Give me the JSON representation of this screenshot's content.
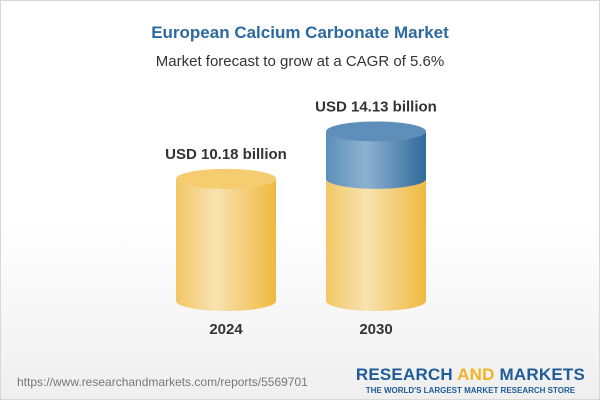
{
  "title": "European Calcium Carbonate Market",
  "subtitle": "Market forecast to grow at a CAGR of 5.6%",
  "chart_data": {
    "type": "bar",
    "style": "3d-cylinder",
    "categories": [
      "2024",
      "2030"
    ],
    "values": [
      10.18,
      14.13
    ],
    "data_labels": [
      "USD 10.18 billion",
      "USD 14.13 billion"
    ],
    "ylim": [
      0,
      14.13
    ],
    "colors": {
      "base": "#f2c25a",
      "growth": "#4d86b4"
    }
  },
  "footer": {
    "url": "https://www.researchandmarkets.com/reports/5569701",
    "logo_part1": "RESEARCH ",
    "logo_part2": "AND",
    "logo_part3": " MARKETS",
    "tagline": "THE WORLD'S LARGEST MARKET RESEARCH STORE"
  }
}
